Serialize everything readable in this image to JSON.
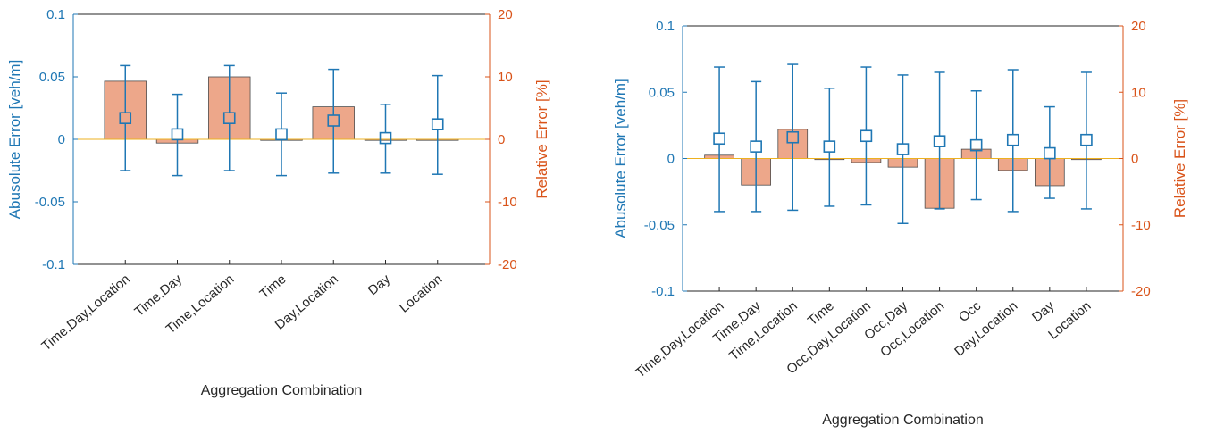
{
  "colors": {
    "left_axis": "#1f77b4",
    "right_axis": "#d95319",
    "bar_fill": "#eda78a",
    "bar_edge": "#4d4d4d",
    "errorbar": "#1f77b4",
    "marker_edge": "#1f77b4",
    "zero_line": "#edb120"
  },
  "chart_data": [
    {
      "type": "bar",
      "xlabel": "Aggregation Combination",
      "ylabel_left": "Abusolute Error [veh/m]",
      "ylabel_right": "Relative Error [%]",
      "ylim_left": [
        -0.1,
        0.1
      ],
      "ylim_right": [
        -20,
        20
      ],
      "yticks_left": [
        "0.1",
        "0.05",
        "0",
        "-0.05",
        "-0.1"
      ],
      "yticks_right": [
        "20",
        "10",
        "0",
        "-10",
        "-20"
      ],
      "categories": [
        "Time,Day,Location",
        "Time,Day",
        "Time,Location",
        "Time",
        "Day,Location",
        "Day",
        "Location"
      ],
      "series": [
        {
          "axis": "right",
          "kind": "bar",
          "values": [
            9.3,
            -0.6,
            10.0,
            0.0,
            5.2,
            0.0,
            0.0
          ]
        },
        {
          "axis": "left",
          "kind": "errorbar",
          "mean": [
            0.017,
            0.004,
            0.017,
            0.004,
            0.015,
            0.001,
            0.012
          ],
          "upper": [
            0.059,
            0.036,
            0.059,
            0.037,
            0.056,
            0.028,
            0.051
          ],
          "lower": [
            -0.025,
            -0.029,
            -0.025,
            -0.029,
            -0.027,
            -0.027,
            -0.028
          ]
        }
      ],
      "grid": false
    },
    {
      "type": "bar",
      "xlabel": "Aggregation Combination",
      "ylabel_left": "Abusolute Error [veh/m]",
      "ylabel_right": "Relative Error [%]",
      "ylim_left": [
        -0.1,
        0.1
      ],
      "ylim_right": [
        -20,
        20
      ],
      "yticks_left": [
        "0.1",
        "0.05",
        "0",
        "-0.05",
        "-0.1"
      ],
      "yticks_right": [
        "20",
        "10",
        "0",
        "-10",
        "-20"
      ],
      "categories": [
        "Time,Day,Location",
        "Time,Day",
        "Time,Location",
        "Time",
        "Occ,Day,Location",
        "Occ,Day",
        "Occ,Location",
        "Occ",
        "Day,Location",
        "Day",
        "Location"
      ],
      "series": [
        {
          "axis": "right",
          "kind": "bar",
          "values": [
            0.5,
            -4.0,
            4.4,
            0.0,
            -0.6,
            -1.3,
            -7.5,
            1.4,
            -1.8,
            -4.1,
            0.0
          ]
        },
        {
          "axis": "left",
          "kind": "errorbar",
          "mean": [
            0.015,
            0.009,
            0.016,
            0.009,
            0.017,
            0.007,
            0.013,
            0.01,
            0.014,
            0.004,
            0.014
          ],
          "upper": [
            0.069,
            0.058,
            0.071,
            0.053,
            0.069,
            0.063,
            0.065,
            0.051,
            0.067,
            0.039,
            0.065
          ],
          "lower": [
            -0.04,
            -0.04,
            -0.039,
            -0.036,
            -0.035,
            -0.049,
            -0.038,
            -0.031,
            -0.04,
            -0.03,
            -0.038
          ]
        }
      ],
      "grid": false
    }
  ]
}
